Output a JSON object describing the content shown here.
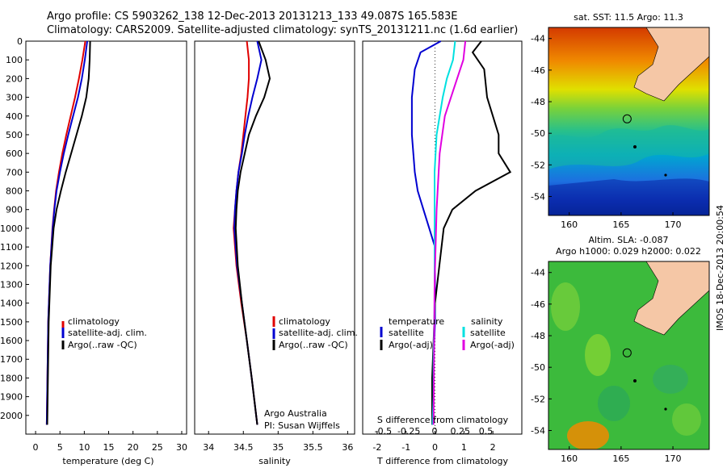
{
  "header": {
    "line1": "Argo profile: CS 5903262_138 12-Dec-2013 20131213_133 49.087S 165.583E",
    "line2": "Climatology: CARS2009. Satellite-adjusted climatology: synTS_20131211.nc (1.6d earlier)"
  },
  "timestamp": "IMOS 18-Dec-2013 20:00:54",
  "credits": {
    "line1": "Argo Australia",
    "line2": "PI: Susan Wijffels"
  },
  "colors": {
    "climatology": "#e00000",
    "satellite": "#0000d0",
    "argo": "#000000",
    "cyan": "#00e0e0",
    "magenta": "#e000e0",
    "land": "#f5c7a6"
  },
  "chart_data": [
    {
      "type": "line",
      "xlabel": "temperature (deg C)",
      "ylabel": "",
      "xlim": [
        -2,
        31
      ],
      "ylim": [
        2100,
        0
      ],
      "xticks": [
        "0",
        "5",
        "10",
        "15",
        "20",
        "25",
        "30"
      ],
      "yticks": [
        "0",
        "100",
        "200",
        "300",
        "400",
        "500",
        "600",
        "700",
        "800",
        "900",
        "1000",
        "1100",
        "1200",
        "1300",
        "1400",
        "1500",
        "1600",
        "1700",
        "1800",
        "1900",
        "2000"
      ],
      "legend": [
        "climatology",
        "satellite-adj. clim.",
        "Argo(..raw -QC)"
      ],
      "legend_position": "lower-center",
      "series": [
        {
          "name": "climatology",
          "color": "red",
          "x": [
            10.2,
            9.6,
            8.9,
            8.1,
            7.2,
            6.3,
            5.5,
            4.8,
            4.2,
            3.8,
            3.45,
            3.0,
            2.6,
            2.3
          ],
          "y": [
            0,
            100,
            200,
            300,
            400,
            500,
            600,
            700,
            800,
            900,
            1000,
            1200,
            1500,
            2050
          ]
        },
        {
          "name": "satellite-adj. clim.",
          "color": "blue",
          "x": [
            10.6,
            10.1,
            9.5,
            8.7,
            7.7,
            6.7,
            5.8,
            5.0,
            4.3,
            3.85,
            3.5,
            3.0,
            2.6,
            2.3
          ],
          "y": [
            0,
            100,
            200,
            300,
            400,
            500,
            600,
            700,
            800,
            900,
            1000,
            1200,
            1500,
            2050
          ]
        },
        {
          "name": "Argo(..raw -QC)",
          "color": "black",
          "x": [
            11.2,
            11.1,
            10.9,
            10.4,
            9.5,
            8.4,
            7.3,
            6.2,
            5.2,
            4.3,
            3.7,
            3.1,
            2.7,
            2.4
          ],
          "y": [
            0,
            100,
            200,
            300,
            400,
            500,
            600,
            700,
            800,
            900,
            1000,
            1200,
            1500,
            2050
          ]
        }
      ]
    },
    {
      "type": "line",
      "xlabel": "salinity",
      "xlim": [
        33.8,
        36.1
      ],
      "ylim": [
        2100,
        0
      ],
      "xticks": [
        "34",
        "34.5",
        "35",
        "35.5",
        "36"
      ],
      "legend": [
        "climatology",
        "satellite-adj. clim.",
        "Argo(..raw -QC)"
      ],
      "legend_position": "lower-center",
      "series": [
        {
          "name": "climatology",
          "color": "red",
          "x": [
            34.55,
            34.58,
            34.58,
            34.56,
            34.53,
            34.5,
            34.47,
            34.43,
            34.4,
            34.38,
            34.36,
            34.4,
            34.47,
            34.55,
            34.62,
            34.7
          ],
          "y": [
            0,
            100,
            200,
            300,
            400,
            500,
            600,
            700,
            800,
            900,
            1000,
            1200,
            1400,
            1600,
            1800,
            2050
          ]
        },
        {
          "name": "satellite-adj. clim.",
          "color": "blue",
          "x": [
            34.7,
            34.76,
            34.7,
            34.63,
            34.57,
            34.52,
            34.48,
            34.43,
            34.4,
            34.38,
            34.37,
            34.41,
            34.48,
            34.55,
            34.62,
            34.7
          ],
          "y": [
            0,
            100,
            200,
            300,
            400,
            500,
            600,
            700,
            800,
            900,
            1000,
            1200,
            1400,
            1600,
            1800,
            2050
          ]
        },
        {
          "name": "Argo(..raw -QC)",
          "color": "black",
          "x": [
            34.72,
            34.82,
            34.88,
            34.8,
            34.68,
            34.58,
            34.52,
            34.46,
            34.42,
            34.4,
            34.39,
            34.42,
            34.48,
            34.55,
            34.62,
            34.7
          ],
          "y": [
            0,
            100,
            200,
            300,
            400,
            500,
            600,
            700,
            800,
            900,
            1000,
            1200,
            1400,
            1600,
            1800,
            2050
          ]
        }
      ]
    },
    {
      "type": "line",
      "xlabel": "T difference from climatology",
      "xlabel2": "S difference from climatology",
      "xlim": [
        -2.5,
        3
      ],
      "xlim_top": [
        -0.7,
        0.85
      ],
      "ylim": [
        2100,
        0
      ],
      "xticks": [
        "-2",
        "-1",
        "0",
        "1",
        "2"
      ],
      "xticks_top": [
        "-0.5",
        "-0.25",
        "0",
        "0.25",
        "0.5"
      ],
      "legend_title_left": "temperature",
      "legend_title_right": "salinity",
      "legend": [
        "satellite",
        "Argo(-adj)",
        "satellite",
        "Argo(-adj)"
      ],
      "legend_position": "lower-center",
      "series": [
        {
          "name": "satellite",
          "color": "blue",
          "axis": "T",
          "x": [
            0.2,
            -0.5,
            -0.7,
            -0.8,
            -0.8,
            -0.7,
            -0.6,
            -0.4,
            -0.2,
            0.0,
            0.0,
            0.0,
            -0.05,
            -0.1,
            -0.1
          ],
          "y": [
            0,
            60,
            150,
            300,
            500,
            700,
            800,
            900,
            1000,
            1100,
            1300,
            1500,
            1700,
            1900,
            2050
          ]
        },
        {
          "name": "Argo(-adj)",
          "color": "black",
          "axis": "T",
          "x": [
            1.6,
            1.3,
            1.7,
            1.8,
            2.2,
            2.2,
            2.6,
            1.4,
            0.6,
            0.3,
            0.15,
            0.0,
            -0.05,
            -0.1,
            -0.1
          ],
          "y": [
            0,
            60,
            150,
            300,
            500,
            600,
            700,
            800,
            900,
            1000,
            1200,
            1400,
            1600,
            1800,
            2050
          ]
        },
        {
          "name": "satellite",
          "color": "cyan",
          "axis": "S",
          "x": [
            0.2,
            0.18,
            0.12,
            0.08,
            0.05,
            0.02,
            0.0,
            0.0,
            0.0,
            0.0,
            -0.01,
            -0.01,
            -0.02
          ],
          "y": [
            0,
            100,
            200,
            300,
            400,
            500,
            700,
            900,
            1100,
            1400,
            1700,
            1900,
            2050
          ]
        },
        {
          "name": "Argo(-adj)",
          "color": "magenta",
          "axis": "S",
          "x": [
            0.3,
            0.28,
            0.22,
            0.16,
            0.1,
            0.05,
            0.02,
            0.0,
            -0.01
          ],
          "y": [
            0,
            100,
            200,
            300,
            400,
            600,
            900,
            1300,
            2050
          ]
        }
      ]
    }
  ],
  "maps": [
    {
      "title": "sat. SST: 11.5 Argo: 11.3",
      "xlim": [
        158,
        173.5
      ],
      "ylim": [
        -55.2,
        -43.3
      ],
      "xticks": [
        "160",
        "165",
        "170"
      ],
      "yticks": [
        "-44",
        "-46",
        "-48",
        "-50",
        "-52",
        "-54"
      ],
      "float_position": [
        165.583,
        -49.087
      ]
    },
    {
      "title_line1": "Altim. SLA: -0.087",
      "title_line2": "Argo h1000: 0.029 h2000: 0.022",
      "xlim": [
        158,
        173.5
      ],
      "ylim": [
        -55.2,
        -43.3
      ],
      "xticks": [
        "160",
        "165",
        "170"
      ],
      "yticks": [
        "-44",
        "-46",
        "-48",
        "-50",
        "-52",
        "-54"
      ],
      "float_position": [
        165.583,
        -49.087
      ]
    }
  ]
}
